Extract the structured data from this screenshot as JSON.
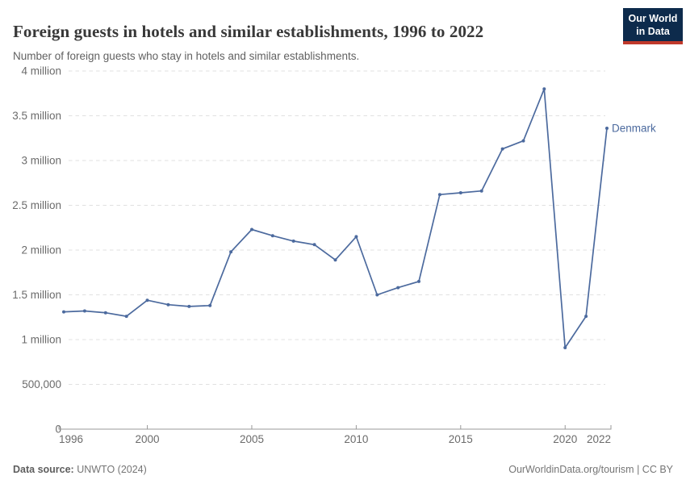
{
  "header": {
    "title": "Foreign guests in hotels and similar establishments, 1996 to 2022",
    "subtitle": "Number of foreign guests who stay in hotels and similar establishments.",
    "logo": {
      "line1": "Our World",
      "line2": "in Data",
      "bg_color": "#0d2b4c",
      "accent_color": "#c0392b"
    }
  },
  "chart_data": {
    "type": "line",
    "title": "Foreign guests in hotels and similar establishments, 1996 to 2022",
    "xlabel": "",
    "ylabel": "",
    "xlim": [
      1996,
      2022
    ],
    "ylim": [
      0,
      4000000
    ],
    "grid": "horizontal-dashed",
    "x": [
      1996,
      1997,
      1998,
      1999,
      2000,
      2001,
      2002,
      2003,
      2004,
      2005,
      2006,
      2007,
      2008,
      2009,
      2010,
      2011,
      2012,
      2013,
      2014,
      2015,
      2016,
      2017,
      2018,
      2019,
      2020,
      2021,
      2022
    ],
    "series": [
      {
        "name": "Denmark",
        "color": "#4c6a9e",
        "values": [
          1310000,
          1320000,
          1300000,
          1260000,
          1440000,
          1390000,
          1370000,
          1380000,
          1980000,
          2230000,
          2160000,
          2100000,
          2060000,
          1890000,
          2150000,
          1500000,
          1580000,
          1650000,
          2620000,
          2640000,
          2660000,
          3130000,
          3220000,
          3800000,
          910000,
          1260000,
          3360000
        ]
      }
    ],
    "x_ticks": [
      {
        "value": 1996,
        "label": "1996"
      },
      {
        "value": 2000,
        "label": "2000"
      },
      {
        "value": 2005,
        "label": "2005"
      },
      {
        "value": 2010,
        "label": "2010"
      },
      {
        "value": 2015,
        "label": "2015"
      },
      {
        "value": 2020,
        "label": "2020"
      },
      {
        "value": 2022,
        "label": "2022"
      }
    ],
    "y_ticks": [
      {
        "value": 0,
        "label": "0"
      },
      {
        "value": 500000,
        "label": "500,000"
      },
      {
        "value": 1000000,
        "label": "1 million"
      },
      {
        "value": 1500000,
        "label": "1.5 million"
      },
      {
        "value": 2000000,
        "label": "2 million"
      },
      {
        "value": 2500000,
        "label": "2.5 million"
      },
      {
        "value": 3000000,
        "label": "3 million"
      },
      {
        "value": 3500000,
        "label": "3.5 million"
      },
      {
        "value": 4000000,
        "label": "4 million"
      }
    ],
    "colors": {
      "grid": "#e0e0e0",
      "axis": "#999999",
      "tick_text": "#6b6b6b"
    },
    "legend_position": "end-of-line-label"
  },
  "footer": {
    "source_label": "Data source:",
    "source_text": " UNWTO (2024)",
    "link": "OurWorldinData.org/tourism | CC BY"
  }
}
